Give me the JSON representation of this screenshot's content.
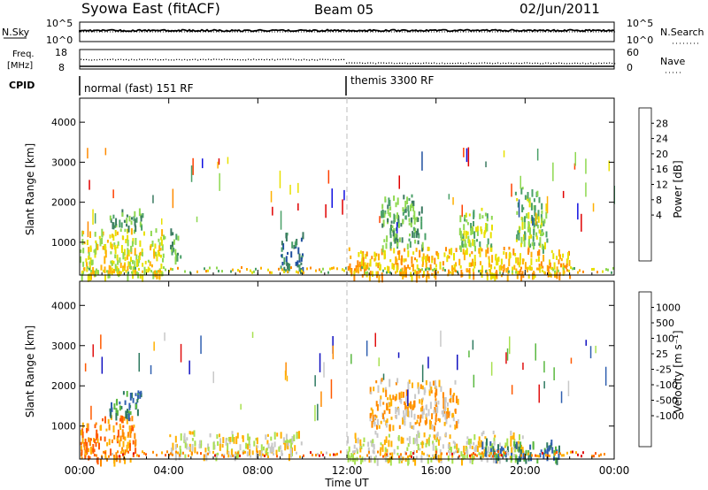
{
  "header": {
    "title": "Syowa East (fitACF)",
    "beam": "Beam 05",
    "date": "02/Jun/2011"
  },
  "status_panels": {
    "nsky_label": "N.Sky",
    "nsky_ticks": [
      "10^5",
      "10^0"
    ],
    "nsearch_label": "N.Search",
    "nsearch_ticks": [
      "10^5",
      "10^0"
    ],
    "freq_label_1": "Freq.",
    "freq_label_2": "[MHz]",
    "freq_ticks": [
      "18",
      "8"
    ],
    "nave_label": "Nave",
    "nave_ticks": [
      "60",
      "0"
    ],
    "cpid_label": "CPID",
    "cpid_segments": [
      {
        "label": "normal (fast) 151 RF",
        "start_hour": 0
      },
      {
        "label": "themis 3300 RF",
        "start_hour": 12.0
      }
    ]
  },
  "power_scale": {
    "title": "Power [dB]",
    "tick_labels": [
      "28",
      "24",
      "20",
      "16",
      "12",
      "8",
      "4"
    ],
    "colors": [
      "#e00000",
      "#ff4000",
      "#ff8a00",
      "#ffb000",
      "#e8e000",
      "#8ed850",
      "#4aa068",
      "#3a7a60",
      "#2050a0",
      "#1010e0"
    ]
  },
  "velocity_scale": {
    "title": "Velocity [m s⁻¹]",
    "tick_labels": [
      "1000",
      "500",
      "100",
      "25",
      "-25",
      "-100",
      "-500",
      "-1000"
    ],
    "colors": [
      "#1010c0",
      "#3060b0",
      "#2e7a60",
      "#5ab840",
      "#a8e050",
      "#c8c8c8",
      "#ffb000",
      "#ff8a00",
      "#ff5a00",
      "#e01010"
    ]
  },
  "chart_data": [
    {
      "type": "heatmap",
      "name": "power",
      "xlabel": "Time UT",
      "ylabel": "Slant Range [km]",
      "xlim_hours": [
        0,
        24
      ],
      "ylim_km": [
        180,
        4600
      ],
      "yticks": [
        1000,
        2000,
        3000,
        4000
      ],
      "ytick_labels": [
        "1000",
        "2000",
        "3000",
        "4000"
      ],
      "xticks_hours": [
        0,
        4,
        8,
        12,
        16,
        20,
        24
      ],
      "xtick_labels": [
        "00:00",
        "04:00",
        "08:00",
        "12:00",
        "16:00",
        "20:00",
        "00:00"
      ],
      "colorbar_label": "Power [dB]",
      "colorbar_range": [
        0,
        30
      ],
      "echo_regions": [
        {
          "t0": 0.0,
          "t1": 3.8,
          "r0": 180,
          "r1": 1400,
          "value": 18
        },
        {
          "t0": 1.3,
          "t1": 2.8,
          "r0": 1400,
          "r1": 1900,
          "value": 10
        },
        {
          "t0": 4.0,
          "t1": 4.5,
          "r0": 600,
          "r1": 1400,
          "value": 10
        },
        {
          "t0": 9.0,
          "t1": 10.0,
          "r0": 300,
          "r1": 1300,
          "value": 8
        },
        {
          "t0": 12.0,
          "t1": 22.0,
          "r0": 180,
          "r1": 900,
          "value": 20
        },
        {
          "t0": 13.5,
          "t1": 15.5,
          "r0": 900,
          "r1": 2200,
          "value": 10
        },
        {
          "t0": 17.0,
          "t1": 18.5,
          "r0": 900,
          "r1": 1900,
          "value": 12
        },
        {
          "t0": 19.5,
          "t1": 21.0,
          "r0": 900,
          "r1": 2400,
          "value": 12
        }
      ]
    },
    {
      "type": "heatmap",
      "name": "velocity",
      "xlabel": "Time UT",
      "ylabel": "Slant Range [km]",
      "xlim_hours": [
        0,
        24
      ],
      "ylim_km": [
        180,
        4600
      ],
      "yticks": [
        1000,
        2000,
        3000,
        4000
      ],
      "ytick_labels": [
        "1000",
        "2000",
        "3000",
        "4000"
      ],
      "xticks_hours": [
        0,
        4,
        8,
        12,
        16,
        20,
        24
      ],
      "xtick_labels": [
        "00:00",
        "04:00",
        "08:00",
        "12:00",
        "16:00",
        "20:00",
        "00:00"
      ],
      "colorbar_label": "Velocity [m s-1]",
      "colorbar_range": [
        -1000,
        1000
      ],
      "echo_regions": [
        {
          "t0": 0.0,
          "t1": 2.5,
          "r0": 180,
          "r1": 1300,
          "value": -500
        },
        {
          "t0": 1.3,
          "t1": 2.8,
          "r0": 1300,
          "r1": 1900,
          "value": 500
        },
        {
          "t0": 4.0,
          "t1": 10.0,
          "r0": 300,
          "r1": 900,
          "value": -100
        },
        {
          "t0": 12.0,
          "t1": 20.0,
          "r0": 180,
          "r1": 900,
          "value": -100
        },
        {
          "t0": 13.0,
          "t1": 17.0,
          "r0": 1000,
          "r1": 2200,
          "value": -300
        },
        {
          "t0": 18.0,
          "t1": 21.5,
          "r0": 180,
          "r1": 700,
          "value": 500
        }
      ]
    }
  ]
}
